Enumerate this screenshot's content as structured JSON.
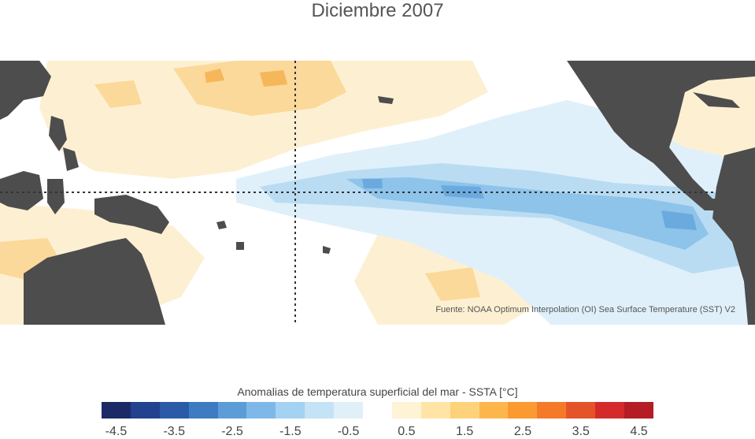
{
  "title": "Diciembre 2007",
  "source": "Fuente: NOAA Optimum Interpolation (OI) Sea Surface Temperature (SST) V2",
  "colorbar": {
    "title": "Anomalias de temperatura superficial del mar - SSTA  [°C]",
    "colors": [
      "#1b2a66",
      "#22418f",
      "#2a5aa8",
      "#3d7bc2",
      "#5c9dd8",
      "#7db8e8",
      "#a3d2f3",
      "#c5e3f6",
      "#e0f0f8",
      "#ffffff",
      "#fff3d6",
      "#ffe4a6",
      "#fed27a",
      "#fdb64c",
      "#fb9a30",
      "#f47a2a",
      "#e4542a",
      "#d42a2a",
      "#b51d24"
    ],
    "ticks": [
      "-4.5",
      "-3.5",
      "-2.5",
      "-1.5",
      "-0.5",
      "0.5",
      "1.5",
      "2.5",
      "3.5",
      "4.5"
    ]
  }
}
